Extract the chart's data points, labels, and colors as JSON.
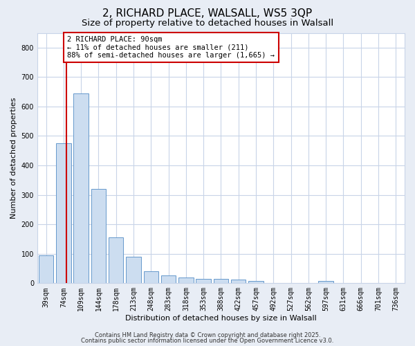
{
  "title1": "2, RICHARD PLACE, WALSALL, WS5 3QP",
  "title2": "Size of property relative to detached houses in Walsall",
  "xlabel": "Distribution of detached houses by size in Walsall",
  "ylabel": "Number of detached properties",
  "bar_labels": [
    "39sqm",
    "74sqm",
    "109sqm",
    "144sqm",
    "178sqm",
    "213sqm",
    "248sqm",
    "283sqm",
    "318sqm",
    "353sqm",
    "388sqm",
    "422sqm",
    "457sqm",
    "492sqm",
    "527sqm",
    "562sqm",
    "597sqm",
    "631sqm",
    "666sqm",
    "701sqm",
    "736sqm"
  ],
  "bar_values": [
    95,
    475,
    645,
    320,
    155,
    90,
    40,
    27,
    20,
    15,
    15,
    12,
    8,
    0,
    0,
    0,
    7,
    0,
    0,
    0,
    0
  ],
  "bar_color": "#ccddf0",
  "bar_edge_color": "#6699cc",
  "red_line_x": 1.18,
  "annotation_text": "2 RICHARD PLACE: 90sqm\n← 11% of detached houses are smaller (211)\n88% of semi-detached houses are larger (1,665) →",
  "annotation_box_facecolor": "#ffffff",
  "annotation_box_edge": "#cc0000",
  "ylim": [
    0,
    850
  ],
  "yticks": [
    0,
    100,
    200,
    300,
    400,
    500,
    600,
    700,
    800
  ],
  "plot_bg": "#ffffff",
  "fig_bg": "#e8edf5",
  "grid_color": "#c8d4e8",
  "footer1": "Contains HM Land Registry data © Crown copyright and database right 2025.",
  "footer2": "Contains public sector information licensed under the Open Government Licence v3.0.",
  "title1_fontsize": 11,
  "title2_fontsize": 9.5,
  "axis_label_fontsize": 8,
  "tick_fontsize": 7,
  "annotation_fontsize": 7.5,
  "footer_fontsize": 6.0
}
